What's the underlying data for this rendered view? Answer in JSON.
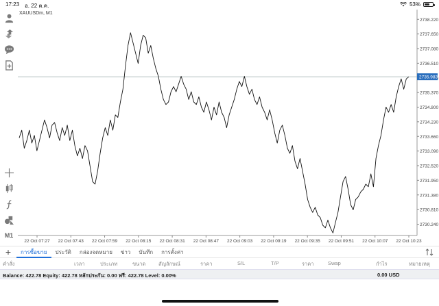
{
  "status_bar": {
    "time": "17:23",
    "date": "อ. 22 ต.ค.",
    "battery": "53%",
    "battery_level": 0.53
  },
  "chart_data": {
    "type": "line",
    "symbol_label": "XAUUSDm, M1",
    "ylim": [
      2729.8,
      2738.6
    ],
    "y_ticks": [
      "2738.220",
      "2737.650",
      "2737.080",
      "2736.510",
      "2735.940",
      "2735.370",
      "2734.800",
      "2734.230",
      "2733.660",
      "2733.090",
      "2732.520",
      "2731.950",
      "2731.380",
      "2730.810",
      "2730.240"
    ],
    "current_price": "2735.983",
    "current_price_value": 2735.983,
    "x_labels": [
      "22 Oct 07:27",
      "22 Oct 07:43",
      "22 Oct 07:59",
      "22 Oct 08:15",
      "22 Oct 08:31",
      "22 Oct 08:47",
      "22 Oct 09:03",
      "22 Oct 09:19",
      "22 Oct 09:35",
      "22 Oct 09:51",
      "22 Oct 10:07",
      "22 Oct 10:23"
    ],
    "values": [
      2733.6,
      2733.9,
      2733.2,
      2733.5,
      2733.9,
      2733.4,
      2733.7,
      2733.1,
      2733.5,
      2733.9,
      2734.3,
      2734.0,
      2733.6,
      2734.1,
      2734.2,
      2733.8,
      2733.5,
      2734.0,
      2733.7,
      2734.1,
      2733.5,
      2733.9,
      2733.3,
      2732.9,
      2733.2,
      2732.8,
      2733.3,
      2733.1,
      2732.5,
      2731.9,
      2731.8,
      2732.3,
      2733.0,
      2733.6,
      2734.0,
      2733.7,
      2734.3,
      2733.9,
      2734.5,
      2734.4,
      2735.0,
      2735.5,
      2736.4,
      2737.2,
      2737.7,
      2737.3,
      2736.9,
      2736.5,
      2737.2,
      2737.6,
      2737.5,
      2736.9,
      2737.2,
      2736.7,
      2736.3,
      2736.0,
      2735.5,
      2735.1,
      2734.9,
      2735.0,
      2735.4,
      2735.6,
      2735.4,
      2735.7,
      2736.0,
      2735.7,
      2735.5,
      2735.1,
      2735.4,
      2735.0,
      2734.9,
      2735.2,
      2734.8,
      2734.6,
      2735.0,
      2734.7,
      2734.3,
      2734.8,
      2734.5,
      2735.0,
      2734.6,
      2734.4,
      2734.0,
      2734.5,
      2734.8,
      2735.1,
      2735.5,
      2735.8,
      2735.6,
      2736.0,
      2735.6,
      2735.3,
      2735.5,
      2735.1,
      2734.9,
      2735.2,
      2734.8,
      2734.6,
      2734.3,
      2734.7,
      2734.3,
      2733.8,
      2733.4,
      2733.9,
      2734.1,
      2733.7,
      2733.2,
      2733.0,
      2733.3,
      2732.7,
      2732.4,
      2732.8,
      2732.3,
      2731.8,
      2731.2,
      2730.9,
      2730.7,
      2730.9,
      2730.6,
      2730.5,
      2730.2,
      2730.1,
      2730.4,
      2730.1,
      2729.9,
      2730.3,
      2730.7,
      2731.3,
      2731.9,
      2732.1,
      2731.6,
      2731.0,
      2730.8,
      2731.2,
      2731.3,
      2731.5,
      2731.6,
      2731.8,
      2731.7,
      2732.2,
      2731.7,
      2732.8,
      2733.3,
      2733.7,
      2734.3,
      2734.8,
      2734.6,
      2734.9,
      2734.6,
      2735.2,
      2735.6,
      2735.9,
      2735.5,
      2735.9,
      2735.98
    ],
    "grid": true,
    "line_color": "#111111",
    "price_tag_color": "#2a6ebd"
  },
  "left_toolbar": [
    {
      "icon": "user-icon"
    },
    {
      "icon": "trade-arrows-icon"
    },
    {
      "icon": "chat-icon"
    },
    {
      "icon": "new-document-icon"
    },
    {
      "icon": "crosshair-icon"
    },
    {
      "icon": "chart-type-icon"
    },
    {
      "icon": "indicator-icon"
    },
    {
      "icon": "objects-icon"
    },
    {
      "icon": "timeframe-icon",
      "label": "M1"
    }
  ],
  "tabs": [
    "การซื้อขาย",
    "ประวัติ",
    "กล่องจดหมาย",
    "ข่าว",
    "บันทึก",
    "การตั้งค่า"
  ],
  "columns": [
    "คำสั่ง",
    "เวลา",
    "ประเภท",
    "ขนาด",
    "สัญลักษณ์",
    "ราคา",
    "S/L",
    "T/P",
    "ราคา",
    "Swap",
    "กำไร",
    "หมายเหตุ"
  ],
  "balance_line": "Balance: 422.78  Equity: 422.78  หลักประกัน: 0.00  ฟรี: 422.78  Level: 0.00%",
  "profit": "0.00  USD"
}
